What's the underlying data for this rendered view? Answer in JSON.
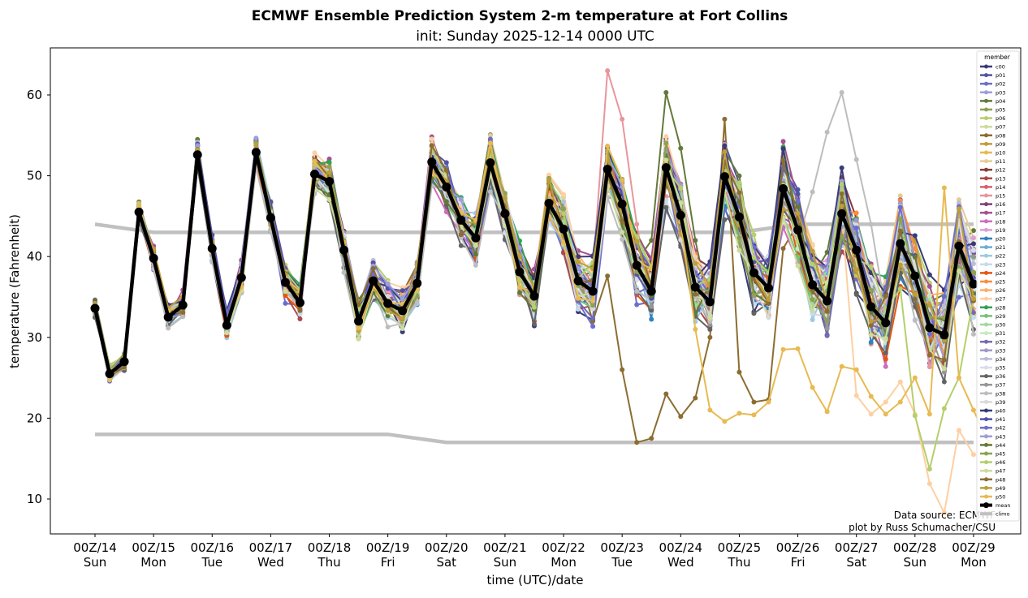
{
  "chart_data": {
    "type": "line",
    "title": "ECMWF Ensemble Prediction System 2-m temperature at Fort Collins",
    "subtitle": "init: Sunday 2025-12-14 0000 UTC",
    "xlabel": "time (UTC)/date",
    "ylabel": "temperature (Fahrenheit)",
    "ylim": [
      5.5,
      66
    ],
    "yticks": [
      10,
      20,
      30,
      40,
      50,
      60
    ],
    "x_unit": "days since 2025-12-14 00Z",
    "x_step_hours": 6,
    "xlim_days": [
      -0.75,
      15.75
    ],
    "xticks": [
      {
        "label": "00Z/14",
        "day": "Sun"
      },
      {
        "label": "00Z/15",
        "day": "Mon"
      },
      {
        "label": "00Z/16",
        "day": "Tue"
      },
      {
        "label": "00Z/17",
        "day": "Wed"
      },
      {
        "label": "00Z/18",
        "day": "Thu"
      },
      {
        "label": "00Z/19",
        "day": "Fri"
      },
      {
        "label": "00Z/20",
        "day": "Sat"
      },
      {
        "label": "00Z/21",
        "day": "Sun"
      },
      {
        "label": "00Z/22",
        "day": "Mon"
      },
      {
        "label": "00Z/23",
        "day": "Tue"
      },
      {
        "label": "00Z/24",
        "day": "Wed"
      },
      {
        "label": "00Z/25",
        "day": "Thu"
      },
      {
        "label": "00Z/26",
        "day": "Fri"
      },
      {
        "label": "00Z/27",
        "day": "Sat"
      },
      {
        "label": "00Z/28",
        "day": "Sun"
      },
      {
        "label": "00Z/29",
        "day": "Mon"
      }
    ],
    "legend": {
      "title": "member",
      "placement": "upper-right"
    },
    "members": [
      {
        "name": "c00",
        "color": "#393b79"
      },
      {
        "name": "p01",
        "color": "#5254a3"
      },
      {
        "name": "p02",
        "color": "#6b6ecf"
      },
      {
        "name": "p03",
        "color": "#9c9ede"
      },
      {
        "name": "p04",
        "color": "#637939"
      },
      {
        "name": "p05",
        "color": "#8ca252"
      },
      {
        "name": "p06",
        "color": "#b5cf6b"
      },
      {
        "name": "p07",
        "color": "#cedb9c"
      },
      {
        "name": "p08",
        "color": "#8c6d31"
      },
      {
        "name": "p09",
        "color": "#bd9e39"
      },
      {
        "name": "p10",
        "color": "#e7ba52"
      },
      {
        "name": "p11",
        "color": "#e7cb94"
      },
      {
        "name": "p12",
        "color": "#843c39"
      },
      {
        "name": "p13",
        "color": "#ad494a"
      },
      {
        "name": "p14",
        "color": "#d6616b"
      },
      {
        "name": "p15",
        "color": "#e7969c"
      },
      {
        "name": "p16",
        "color": "#7b4173"
      },
      {
        "name": "p17",
        "color": "#a55194"
      },
      {
        "name": "p18",
        "color": "#ce6dbd"
      },
      {
        "name": "p19",
        "color": "#de9ed6"
      },
      {
        "name": "p20",
        "color": "#3182bd"
      },
      {
        "name": "p21",
        "color": "#6baed6"
      },
      {
        "name": "p22",
        "color": "#9ecae1"
      },
      {
        "name": "p23",
        "color": "#c6dbef"
      },
      {
        "name": "p24",
        "color": "#e6550d"
      },
      {
        "name": "p25",
        "color": "#fd8d3c"
      },
      {
        "name": "p26",
        "color": "#fdae6b"
      },
      {
        "name": "p27",
        "color": "#fdd0a2"
      },
      {
        "name": "p28",
        "color": "#31a354"
      },
      {
        "name": "p29",
        "color": "#74c476"
      },
      {
        "name": "p30",
        "color": "#a1d99b"
      },
      {
        "name": "p31",
        "color": "#c7e9c0"
      },
      {
        "name": "p32",
        "color": "#756bb1"
      },
      {
        "name": "p33",
        "color": "#9e9ac8"
      },
      {
        "name": "p34",
        "color": "#bcbddc"
      },
      {
        "name": "p35",
        "color": "#dadaeb"
      },
      {
        "name": "p36",
        "color": "#636363"
      },
      {
        "name": "p37",
        "color": "#969696"
      },
      {
        "name": "p38",
        "color": "#bdbdbd"
      },
      {
        "name": "p39",
        "color": "#d9d9d9"
      },
      {
        "name": "p40",
        "color": "#393b79"
      },
      {
        "name": "p41",
        "color": "#5254a3"
      },
      {
        "name": "p42",
        "color": "#6b6ecf"
      },
      {
        "name": "p43",
        "color": "#9c9ede"
      },
      {
        "name": "p44",
        "color": "#637939"
      },
      {
        "name": "p45",
        "color": "#8ca252"
      },
      {
        "name": "p46",
        "color": "#b5cf6b"
      },
      {
        "name": "p47",
        "color": "#cedb9c"
      },
      {
        "name": "p48",
        "color": "#8c6d31"
      },
      {
        "name": "p49",
        "color": "#bd9e39"
      },
      {
        "name": "p50",
        "color": "#e7ba52"
      }
    ],
    "member_overrides": [
      {
        "name": "p08",
        "start_index": 33,
        "values": [
          38,
          32,
          37.6,
          26,
          17,
          17.5,
          23,
          20.2,
          22.5,
          30,
          57,
          25.7,
          22,
          22.3,
          41
        ]
      },
      {
        "name": "p50",
        "start_index": 41,
        "values": [
          31,
          21,
          19.6,
          20.6,
          20.4,
          22,
          28.5,
          28.6,
          23.8,
          20.8,
          26.4,
          26,
          22.7,
          20.5,
          22,
          25,
          20.5,
          48.5,
          25,
          21,
          17
        ]
      },
      {
        "name": "p27",
        "start_index": 52,
        "values": [
          22.8,
          20.5,
          22,
          24.5,
          20.5,
          11.9,
          8.3,
          18.5,
          15.5
        ]
      },
      {
        "name": "p15",
        "start_index": 34,
        "values": [
          38,
          63,
          57,
          44
        ]
      },
      {
        "name": "p38",
        "start_index": 49,
        "values": [
          48,
          55.4,
          60.3,
          52,
          44
        ]
      },
      {
        "name": "p04",
        "start_index": 38,
        "values": [
          42,
          60.3,
          53.4,
          42
        ]
      },
      {
        "name": "p46",
        "start_index": 55,
        "values": [
          36,
          20.3,
          13.7,
          21.2,
          25
        ]
      }
    ],
    "series": [
      {
        "name": "mean",
        "color": "#000000",
        "values": [
          33.6,
          25.5,
          27,
          45.5,
          39.8,
          32.5,
          34,
          52.6,
          41,
          31.5,
          37.4,
          52.9,
          44.8,
          36.8,
          34.3,
          50.2,
          49.3,
          40.8,
          32,
          37,
          34.2,
          33.3,
          36.7,
          51.7,
          48.6,
          44.5,
          42.3,
          51.6,
          45.3,
          38.1,
          35.1,
          46.6,
          43.4,
          37,
          35.7,
          50.8,
          46.5,
          38.9,
          35.7,
          51,
          45.1,
          36.2,
          34.4,
          49.9,
          44.9,
          38,
          36.1,
          48.4,
          43.3,
          36.5,
          34.5,
          45.3,
          40.8,
          33.8,
          31.8,
          41.6,
          37.6,
          31.2,
          30.3,
          41.3,
          36.6
        ]
      },
      {
        "name": "climo",
        "color": "#c0c0c0",
        "step_hours": 24,
        "upper": [
          44,
          43,
          43,
          43,
          43,
          43,
          43,
          43,
          43,
          43,
          43,
          43,
          44,
          44,
          44,
          44
        ],
        "lower": [
          18,
          18,
          18,
          18,
          18,
          18,
          17,
          17,
          17,
          17,
          17,
          17,
          17,
          17,
          17,
          17
        ]
      }
    ],
    "annotations": [
      "Data source: ECMWF",
      "plot by Russ Schumacher/CSU"
    ]
  }
}
